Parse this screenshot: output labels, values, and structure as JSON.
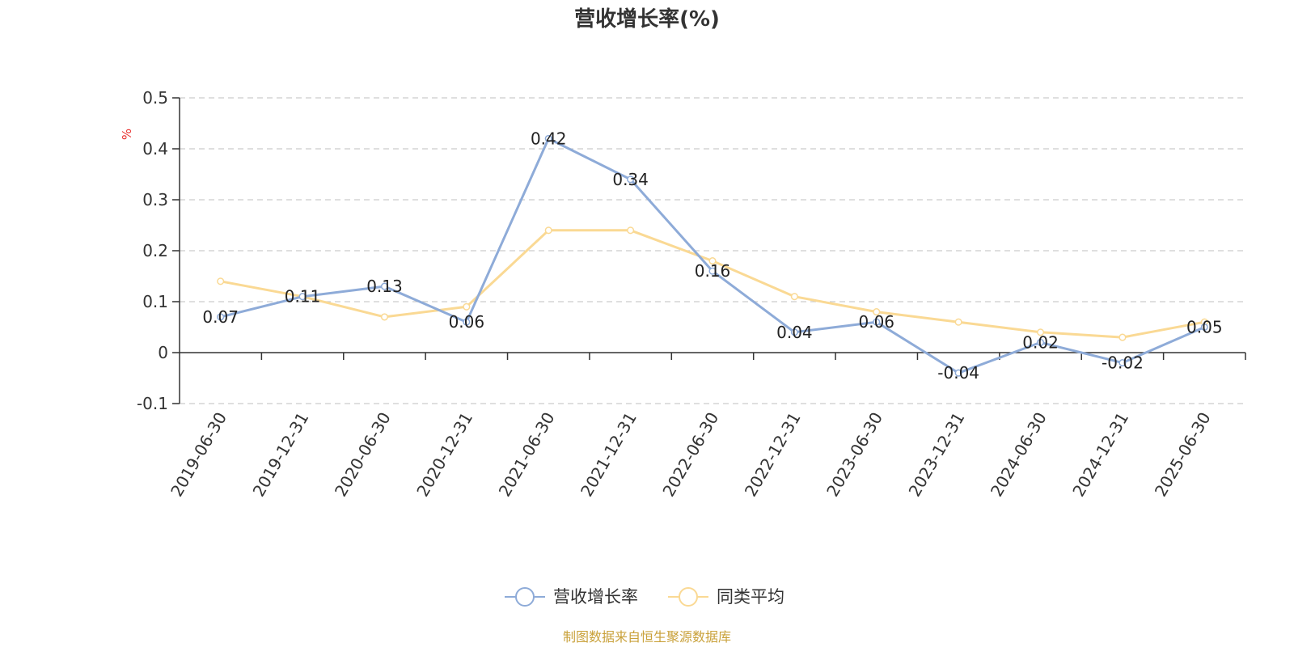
{
  "chart_data": {
    "type": "line",
    "title": "营收增长率(%)",
    "ylabel": "%",
    "xlabel": "",
    "ylim": [
      -0.1,
      0.5
    ],
    "yticks": [
      -0.1,
      0,
      0.1,
      0.2,
      0.3,
      0.4,
      0.5
    ],
    "ytick_labels": [
      "-0.1",
      "0",
      "0.1",
      "0.2",
      "0.3",
      "0.4",
      "0.5"
    ],
    "grid": true,
    "legend_position": "bottom",
    "categories": [
      "2019-06-30",
      "2019-12-31",
      "2020-06-30",
      "2020-12-31",
      "2021-06-30",
      "2021-12-31",
      "2022-06-30",
      "2022-12-31",
      "2023-06-30",
      "2023-12-31",
      "2024-06-30",
      "2024-12-31",
      "2025-06-30"
    ],
    "series": [
      {
        "name": "营收增长率",
        "color": "#8eabd8",
        "values": [
          0.07,
          0.11,
          0.13,
          0.06,
          0.42,
          0.34,
          0.16,
          0.04,
          0.06,
          -0.04,
          0.02,
          -0.02,
          0.05
        ],
        "labels": [
          "0.07",
          "0.11",
          "0.13",
          "0.06",
          "0.42",
          "0.34",
          "0.16",
          "0.04",
          "0.06",
          "-0.04",
          "0.02",
          "-0.02",
          "0.05"
        ]
      },
      {
        "name": "同类平均",
        "color": "#fad994",
        "values": [
          0.14,
          0.11,
          0.07,
          0.09,
          0.24,
          0.24,
          0.18,
          0.11,
          0.08,
          0.06,
          0.04,
          0.03,
          0.06
        ]
      }
    ]
  },
  "colors": {
    "unit_label": "#e8312f",
    "source": "#c9a13a",
    "axis": "#333333",
    "grid": "#cccccc"
  },
  "footer": {
    "source": "制图数据来自恒生聚源数据库"
  }
}
